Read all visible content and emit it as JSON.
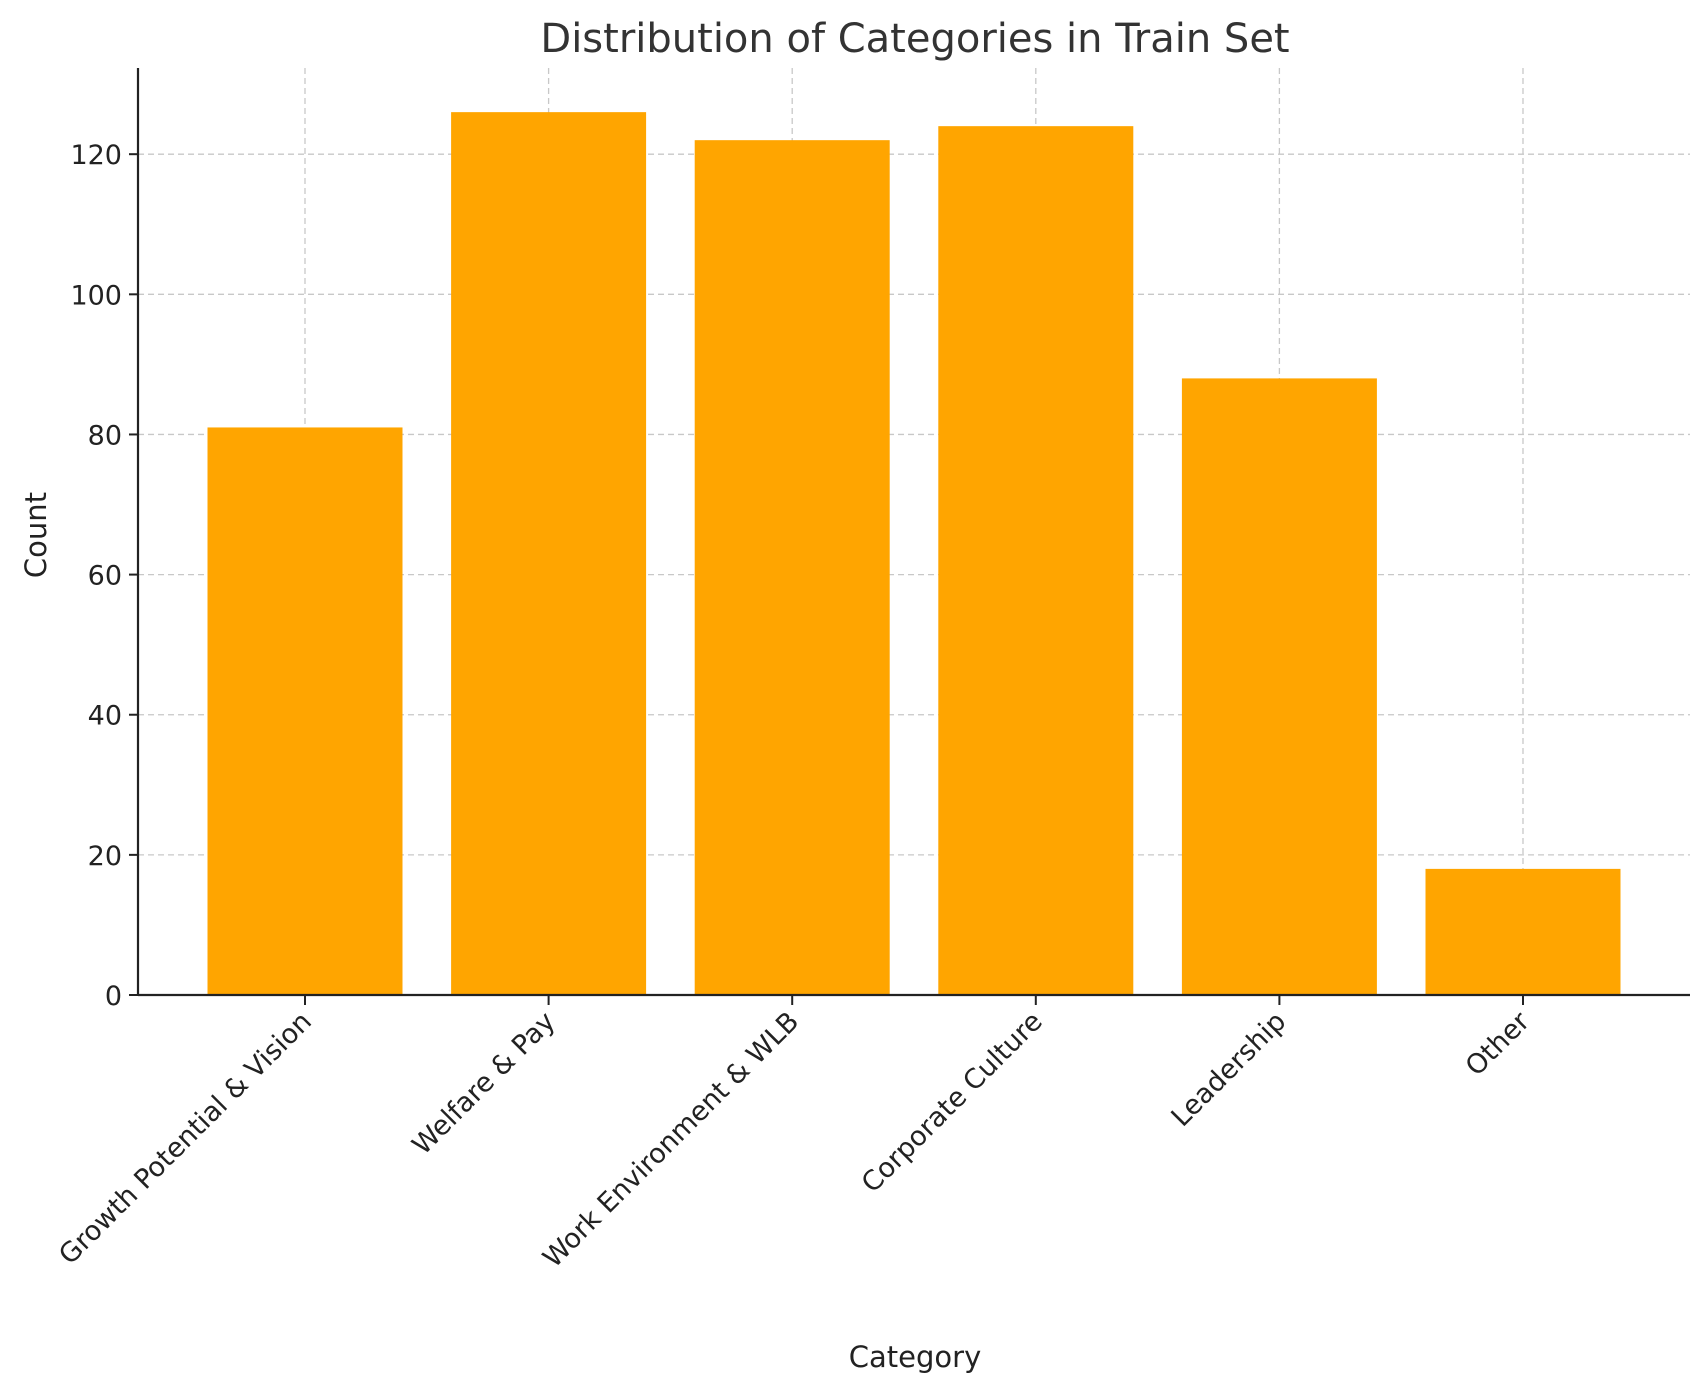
{
  "chart_data": {
    "type": "bar",
    "title": "Distribution of Categories in Train Set",
    "xlabel": "Category",
    "ylabel": "Count",
    "categories": [
      "Growth Potential & Vision",
      "Welfare & Pay",
      "Work Environment & WLB",
      "Corporate Culture",
      "Leadership",
      "Other"
    ],
    "values": [
      81,
      126,
      122,
      124,
      88,
      18
    ],
    "ylim": [
      0,
      132.3
    ],
    "yticks": [
      0,
      20,
      40,
      60,
      80,
      100,
      120
    ],
    "grid": true,
    "bar_color": "#FFA500",
    "legend": "none"
  }
}
